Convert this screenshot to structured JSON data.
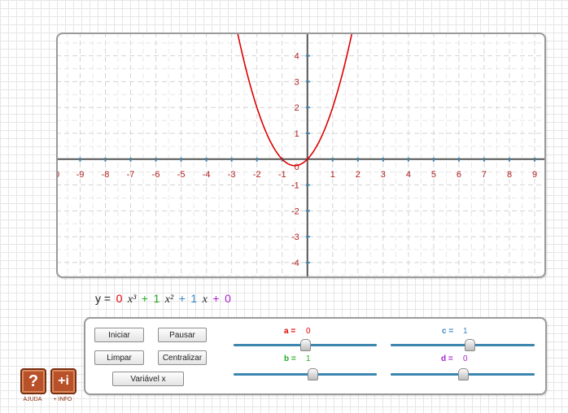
{
  "graph": {
    "x_ticks": [
      "-9",
      "-8",
      "-7",
      "-6",
      "-5",
      "-4",
      "-3",
      "-2",
      "-1",
      "1",
      "2",
      "3",
      "4",
      "5",
      "6",
      "7",
      "8",
      "9"
    ],
    "y_ticks": [
      "4",
      "3",
      "2",
      "1",
      "-1",
      "-2",
      "-3",
      "-4"
    ],
    "origin_label": "0",
    "left_edge_label": "0",
    "function": {
      "a": 0,
      "b": 1,
      "c": 1,
      "d": 0
    },
    "x_range": [
      -9.95,
      9.45
    ],
    "y_range": [
      -4.6,
      4.9
    ],
    "curve_color": "#dd0000",
    "axis_color": "#555555",
    "tick_color": "#3d86b0",
    "label_color": "#b02020"
  },
  "equation": {
    "prefix": "y =",
    "a": "0",
    "x3": "x³",
    "plus1": "+",
    "b": "1",
    "x2": "x²",
    "plus2": "+",
    "c": "1",
    "x1": "x",
    "plus3": "+",
    "d": "0",
    "colors": {
      "a": "#e00000",
      "b": "#22aa22",
      "c": "#3a88c8",
      "d": "#aa22cc"
    }
  },
  "buttons": {
    "start": "Iniciar",
    "pause": "Pausar",
    "clear": "Limpar",
    "center": "Centralizar",
    "variable": "Variável x"
  },
  "sliders": {
    "a": {
      "label": "a =",
      "value": "0",
      "level": 0.5,
      "color": "#e00000"
    },
    "b": {
      "label": "b =",
      "value": "1",
      "level": 0.55,
      "color": "#22aa22"
    },
    "c": {
      "label": "c =",
      "value": "1",
      "level": 0.55,
      "color": "#3a88c8"
    },
    "d": {
      "label": "d =",
      "value": "0",
      "level": 0.5,
      "color": "#aa22cc"
    }
  },
  "help": {
    "ajuda_label": "AJUDA",
    "info_label": "+ INFO",
    "ajuda_icon": "question-mark",
    "info_icon": "plus-i"
  }
}
